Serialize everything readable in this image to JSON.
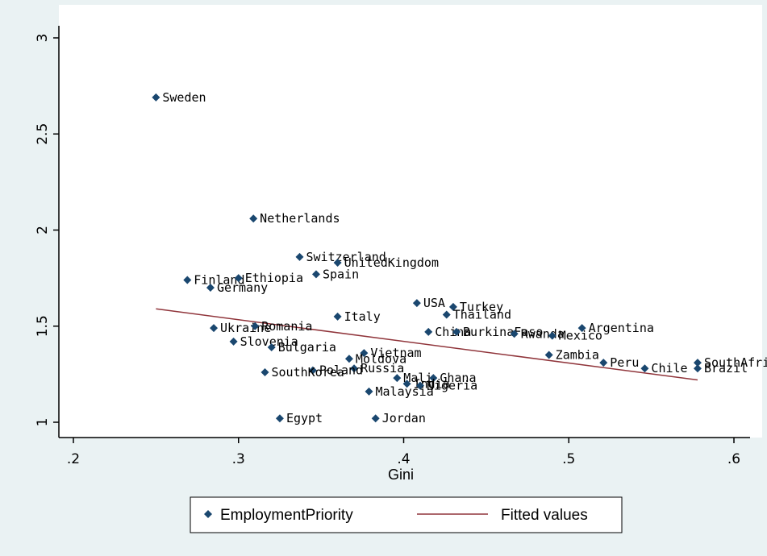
{
  "chart_data": {
    "type": "scatter",
    "xlabel": "Gini",
    "ylabel": "",
    "xlim": [
      0.2,
      0.6
    ],
    "ylim": [
      1,
      3
    ],
    "x_ticks": [
      ".2",
      ".3",
      ".4",
      ".5",
      ".6"
    ],
    "y_ticks": [
      "1",
      "1.5",
      "2",
      "2.5",
      "3"
    ],
    "grid": false,
    "legend_position": "bottom",
    "colors": {
      "marker": "#1a476f",
      "fit_line": "#90353b",
      "background": "#eaf2f3",
      "plot_area": "#ffffff"
    },
    "series": [
      {
        "name": "EmploymentPriority",
        "points": [
          {
            "label": "Sweden",
            "x": 0.25,
            "y": 2.69
          },
          {
            "label": "Netherlands",
            "x": 0.309,
            "y": 2.06
          },
          {
            "label": "Switzerland",
            "x": 0.337,
            "y": 1.86
          },
          {
            "label": "UnitedKingdom",
            "x": 0.36,
            "y": 1.83
          },
          {
            "label": "Finland",
            "x": 0.269,
            "y": 1.74
          },
          {
            "label": "Ethiopia",
            "x": 0.3,
            "y": 1.75
          },
          {
            "label": "Germany",
            "x": 0.283,
            "y": 1.7
          },
          {
            "label": "Spain",
            "x": 0.347,
            "y": 1.77
          },
          {
            "label": "USA",
            "x": 0.408,
            "y": 1.62
          },
          {
            "label": "Turkey",
            "x": 0.43,
            "y": 1.6
          },
          {
            "label": "Thailand",
            "x": 0.426,
            "y": 1.56
          },
          {
            "label": "Italy",
            "x": 0.36,
            "y": 1.55
          },
          {
            "label": "Ukraine",
            "x": 0.285,
            "y": 1.49
          },
          {
            "label": "Romania",
            "x": 0.31,
            "y": 1.5
          },
          {
            "label": "China",
            "x": 0.415,
            "y": 1.47
          },
          {
            "label": "BurkinaFaso",
            "x": 0.432,
            "y": 1.47
          },
          {
            "label": "Rwanda",
            "x": 0.467,
            "y": 1.46
          },
          {
            "label": "Mexico",
            "x": 0.49,
            "y": 1.45
          },
          {
            "label": "Argentina",
            "x": 0.508,
            "y": 1.49
          },
          {
            "label": "Slovenia",
            "x": 0.297,
            "y": 1.42
          },
          {
            "label": "Bulgaria",
            "x": 0.32,
            "y": 1.39
          },
          {
            "label": "Vietnam",
            "x": 0.376,
            "y": 1.36
          },
          {
            "label": "Moldova",
            "x": 0.367,
            "y": 1.33
          },
          {
            "label": "Russia",
            "x": 0.37,
            "y": 1.28
          },
          {
            "label": "Poland",
            "x": 0.345,
            "y": 1.27
          },
          {
            "label": "SouthKorea",
            "x": 0.316,
            "y": 1.26
          },
          {
            "label": "Zambia",
            "x": 0.488,
            "y": 1.35
          },
          {
            "label": "Peru",
            "x": 0.521,
            "y": 1.31
          },
          {
            "label": "Chile",
            "x": 0.546,
            "y": 1.28
          },
          {
            "label": "SouthAfrica",
            "x": 0.578,
            "y": 1.31
          },
          {
            "label": "Brazil",
            "x": 0.578,
            "y": 1.28
          },
          {
            "label": "Mali",
            "x": 0.396,
            "y": 1.23
          },
          {
            "label": "Ghana",
            "x": 0.418,
            "y": 1.23
          },
          {
            "label": "India",
            "x": 0.402,
            "y": 1.2
          },
          {
            "label": "Nigeria",
            "x": 0.41,
            "y": 1.19
          },
          {
            "label": "Malaysia",
            "x": 0.379,
            "y": 1.16
          },
          {
            "label": "Egypt",
            "x": 0.325,
            "y": 1.02
          },
          {
            "label": "Jordan",
            "x": 0.383,
            "y": 1.02
          }
        ]
      },
      {
        "name": "Fitted values",
        "type": "line",
        "x": [
          0.25,
          0.578
        ],
        "y": [
          1.59,
          1.22
        ]
      }
    ]
  },
  "legend": [
    {
      "label": "EmploymentPriority"
    },
    {
      "label": "Fitted values"
    }
  ]
}
